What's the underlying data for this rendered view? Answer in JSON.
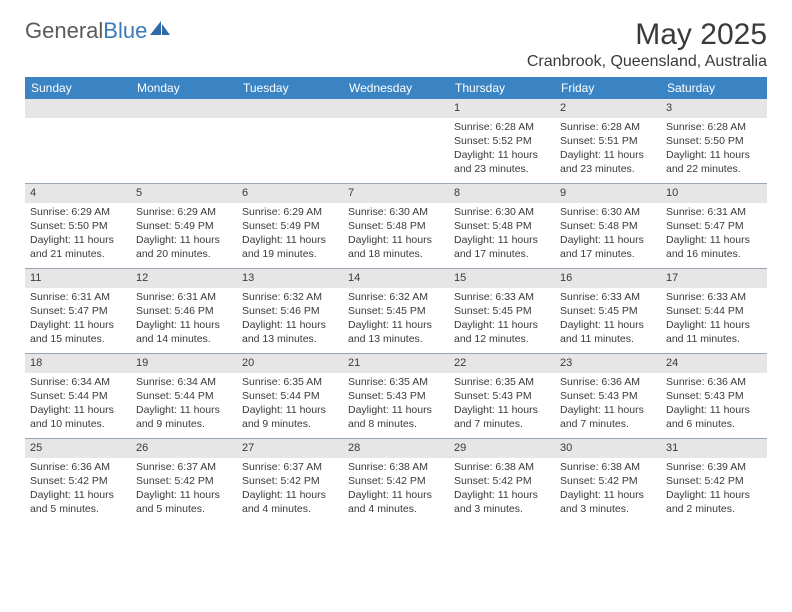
{
  "brand": {
    "part1": "General",
    "part2": "Blue"
  },
  "title": "May 2025",
  "location": "Cranbrook, Queensland, Australia",
  "styling": {
    "header_bg": "#3b84c4",
    "header_text": "#ffffff",
    "dayheader_bg": "#e6e6e6",
    "body_text": "#3a3a3a",
    "rule_color": "#9aa6b2",
    "page_bg": "#ffffff",
    "month_fontsize": 30,
    "location_fontsize": 16,
    "weekday_fontsize": 12,
    "cell_fontsize": 10.5
  },
  "weekdays": [
    "Sunday",
    "Monday",
    "Tuesday",
    "Wednesday",
    "Thursday",
    "Friday",
    "Saturday"
  ],
  "labels": {
    "sunrise": "Sunrise:",
    "sunset": "Sunset:",
    "daylight": "Daylight:"
  },
  "weeks": [
    [
      {
        "day": "",
        "empty": true
      },
      {
        "day": "",
        "empty": true
      },
      {
        "day": "",
        "empty": true
      },
      {
        "day": "",
        "empty": true
      },
      {
        "day": "1",
        "sunrise": "6:28 AM",
        "sunset": "5:52 PM",
        "daylight": "11 hours and 23 minutes."
      },
      {
        "day": "2",
        "sunrise": "6:28 AM",
        "sunset": "5:51 PM",
        "daylight": "11 hours and 23 minutes."
      },
      {
        "day": "3",
        "sunrise": "6:28 AM",
        "sunset": "5:50 PM",
        "daylight": "11 hours and 22 minutes."
      }
    ],
    [
      {
        "day": "4",
        "sunrise": "6:29 AM",
        "sunset": "5:50 PM",
        "daylight": "11 hours and 21 minutes."
      },
      {
        "day": "5",
        "sunrise": "6:29 AM",
        "sunset": "5:49 PM",
        "daylight": "11 hours and 20 minutes."
      },
      {
        "day": "6",
        "sunrise": "6:29 AM",
        "sunset": "5:49 PM",
        "daylight": "11 hours and 19 minutes."
      },
      {
        "day": "7",
        "sunrise": "6:30 AM",
        "sunset": "5:48 PM",
        "daylight": "11 hours and 18 minutes."
      },
      {
        "day": "8",
        "sunrise": "6:30 AM",
        "sunset": "5:48 PM",
        "daylight": "11 hours and 17 minutes."
      },
      {
        "day": "9",
        "sunrise": "6:30 AM",
        "sunset": "5:48 PM",
        "daylight": "11 hours and 17 minutes."
      },
      {
        "day": "10",
        "sunrise": "6:31 AM",
        "sunset": "5:47 PM",
        "daylight": "11 hours and 16 minutes."
      }
    ],
    [
      {
        "day": "11",
        "sunrise": "6:31 AM",
        "sunset": "5:47 PM",
        "daylight": "11 hours and 15 minutes."
      },
      {
        "day": "12",
        "sunrise": "6:31 AM",
        "sunset": "5:46 PM",
        "daylight": "11 hours and 14 minutes."
      },
      {
        "day": "13",
        "sunrise": "6:32 AM",
        "sunset": "5:46 PM",
        "daylight": "11 hours and 13 minutes."
      },
      {
        "day": "14",
        "sunrise": "6:32 AM",
        "sunset": "5:45 PM",
        "daylight": "11 hours and 13 minutes."
      },
      {
        "day": "15",
        "sunrise": "6:33 AM",
        "sunset": "5:45 PM",
        "daylight": "11 hours and 12 minutes."
      },
      {
        "day": "16",
        "sunrise": "6:33 AM",
        "sunset": "5:45 PM",
        "daylight": "11 hours and 11 minutes."
      },
      {
        "day": "17",
        "sunrise": "6:33 AM",
        "sunset": "5:44 PM",
        "daylight": "11 hours and 11 minutes."
      }
    ],
    [
      {
        "day": "18",
        "sunrise": "6:34 AM",
        "sunset": "5:44 PM",
        "daylight": "11 hours and 10 minutes."
      },
      {
        "day": "19",
        "sunrise": "6:34 AM",
        "sunset": "5:44 PM",
        "daylight": "11 hours and 9 minutes."
      },
      {
        "day": "20",
        "sunrise": "6:35 AM",
        "sunset": "5:44 PM",
        "daylight": "11 hours and 9 minutes."
      },
      {
        "day": "21",
        "sunrise": "6:35 AM",
        "sunset": "5:43 PM",
        "daylight": "11 hours and 8 minutes."
      },
      {
        "day": "22",
        "sunrise": "6:35 AM",
        "sunset": "5:43 PM",
        "daylight": "11 hours and 7 minutes."
      },
      {
        "day": "23",
        "sunrise": "6:36 AM",
        "sunset": "5:43 PM",
        "daylight": "11 hours and 7 minutes."
      },
      {
        "day": "24",
        "sunrise": "6:36 AM",
        "sunset": "5:43 PM",
        "daylight": "11 hours and 6 minutes."
      }
    ],
    [
      {
        "day": "25",
        "sunrise": "6:36 AM",
        "sunset": "5:42 PM",
        "daylight": "11 hours and 5 minutes."
      },
      {
        "day": "26",
        "sunrise": "6:37 AM",
        "sunset": "5:42 PM",
        "daylight": "11 hours and 5 minutes."
      },
      {
        "day": "27",
        "sunrise": "6:37 AM",
        "sunset": "5:42 PM",
        "daylight": "11 hours and 4 minutes."
      },
      {
        "day": "28",
        "sunrise": "6:38 AM",
        "sunset": "5:42 PM",
        "daylight": "11 hours and 4 minutes."
      },
      {
        "day": "29",
        "sunrise": "6:38 AM",
        "sunset": "5:42 PM",
        "daylight": "11 hours and 3 minutes."
      },
      {
        "day": "30",
        "sunrise": "6:38 AM",
        "sunset": "5:42 PM",
        "daylight": "11 hours and 3 minutes."
      },
      {
        "day": "31",
        "sunrise": "6:39 AM",
        "sunset": "5:42 PM",
        "daylight": "11 hours and 2 minutes."
      }
    ]
  ]
}
